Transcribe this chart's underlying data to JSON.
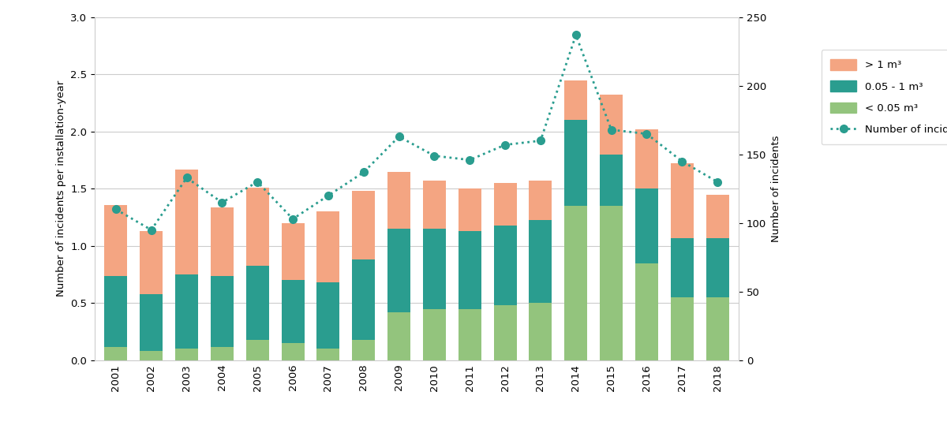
{
  "years": [
    2001,
    2002,
    2003,
    2004,
    2005,
    2006,
    2007,
    2008,
    2009,
    2010,
    2011,
    2012,
    2013,
    2014,
    2015,
    2016,
    2017,
    2018
  ],
  "small_spills": [
    0.12,
    0.08,
    0.1,
    0.12,
    0.18,
    0.15,
    0.1,
    0.18,
    0.42,
    0.45,
    0.45,
    0.48,
    0.5,
    1.35,
    1.35,
    0.85,
    0.55,
    0.55
  ],
  "medium_spills": [
    0.62,
    0.5,
    0.65,
    0.62,
    0.65,
    0.55,
    0.58,
    0.7,
    0.73,
    0.7,
    0.68,
    0.7,
    0.73,
    0.75,
    0.45,
    0.65,
    0.52,
    0.52
  ],
  "large_spills": [
    0.62,
    0.55,
    0.92,
    0.6,
    0.68,
    0.5,
    0.62,
    0.6,
    0.5,
    0.42,
    0.37,
    0.37,
    0.34,
    0.35,
    0.52,
    0.52,
    0.65,
    0.38
  ],
  "num_incidents": [
    110,
    95,
    133,
    115,
    130,
    103,
    120,
    137,
    163,
    149,
    146,
    157,
    160,
    237,
    168,
    165,
    145,
    130
  ],
  "color_small": "#93c47d",
  "color_medium": "#2a9d8f",
  "color_large": "#f4a582",
  "color_line": "#2a9d8f",
  "ylabel_left": "Number of incidents per installation-year",
  "ylabel_right": "Number of incidents",
  "ylim_left": [
    0,
    3
  ],
  "ylim_right": [
    0,
    250
  ],
  "yticks_left": [
    0,
    0.5,
    1.0,
    1.5,
    2.0,
    2.5,
    3.0
  ],
  "yticks_right": [
    0,
    50,
    100,
    150,
    200,
    250
  ],
  "legend_labels": [
    "> 1 m³",
    "0.05 - 1 m³",
    "< 0.05 m³",
    "Number of incidents"
  ],
  "background_color": "#ffffff"
}
